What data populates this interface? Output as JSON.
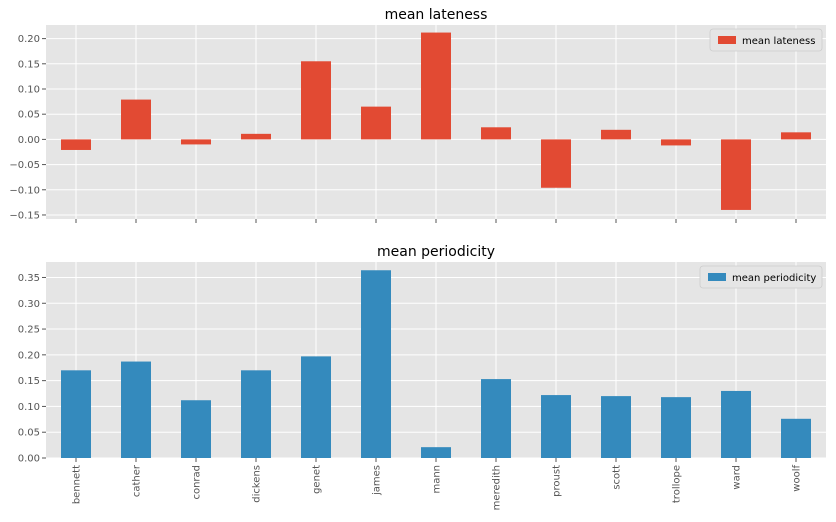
{
  "chart_data": [
    {
      "type": "bar",
      "title": "mean lateness",
      "xlabel": "",
      "ylabel": "",
      "categories": [
        "bennett",
        "cather",
        "conrad",
        "dickens",
        "genet",
        "james",
        "mann",
        "meredith",
        "proust",
        "scott",
        "trollope",
        "ward",
        "woolf"
      ],
      "series": [
        {
          "name": "mean lateness",
          "color": "#e24a33",
          "values": [
            -0.021,
            0.079,
            -0.01,
            0.011,
            0.155,
            0.065,
            0.212,
            0.024,
            -0.096,
            0.019,
            -0.012,
            -0.14,
            0.014
          ]
        }
      ],
      "ylim": [
        -0.158,
        0.227
      ],
      "yticks": [
        -0.15,
        -0.1,
        -0.05,
        0.0,
        0.05,
        0.1,
        0.15,
        0.2
      ],
      "ytick_labels": [
        "−0.15",
        "−0.10",
        "−0.05",
        "0.00",
        "0.05",
        "0.10",
        "0.15",
        "0.20"
      ],
      "show_xtick_labels": false,
      "grid": true,
      "legend_position": "top-right",
      "background": "#e5e5e5"
    },
    {
      "type": "bar",
      "title": "mean periodicity",
      "xlabel": "",
      "ylabel": "",
      "categories": [
        "bennett",
        "cather",
        "conrad",
        "dickens",
        "genet",
        "james",
        "mann",
        "meredith",
        "proust",
        "scott",
        "trollope",
        "ward",
        "woolf"
      ],
      "series": [
        {
          "name": "mean periodicity",
          "color": "#348abd",
          "values": [
            0.17,
            0.187,
            0.112,
            0.17,
            0.197,
            0.364,
            0.021,
            0.153,
            0.122,
            0.12,
            0.118,
            0.13,
            0.076
          ]
        }
      ],
      "ylim": [
        0,
        0.38
      ],
      "yticks": [
        0.0,
        0.05,
        0.1,
        0.15,
        0.2,
        0.25,
        0.3,
        0.35
      ],
      "ytick_labels": [
        "0.00",
        "0.05",
        "0.10",
        "0.15",
        "0.20",
        "0.25",
        "0.30",
        "0.35"
      ],
      "show_xtick_labels": true,
      "grid": true,
      "legend_position": "top-right",
      "background": "#e5e5e5"
    }
  ]
}
